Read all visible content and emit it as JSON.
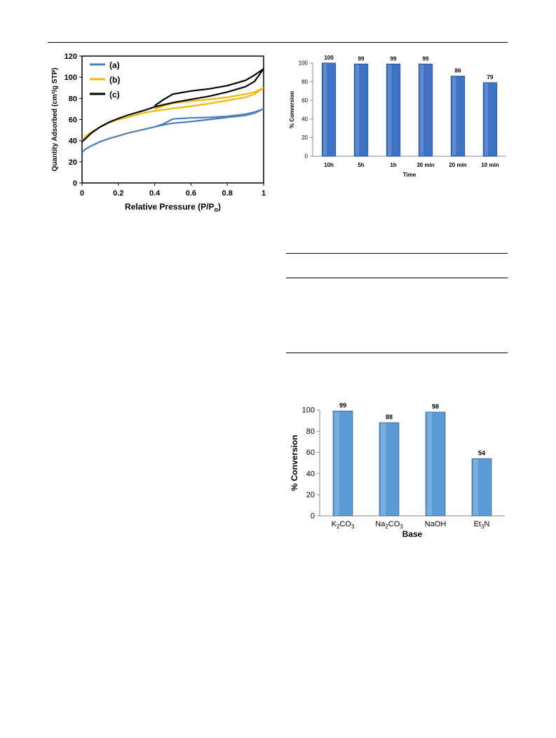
{
  "chart_data": [
    {
      "type": "line",
      "xlabel": "Relative Pressure (P/P",
      "xlabel_sub": "o",
      "xlabel_end": ")",
      "ylabel": "Quantity Adsorbed (cm³/g STP)",
      "xlim": [
        0,
        1
      ],
      "ylim": [
        0,
        120
      ],
      "xticks": [
        0,
        0.2,
        0.4,
        0.6,
        0.8,
        1
      ],
      "xtick_labels": [
        "0",
        "0.2",
        "0.4",
        "0.6",
        "0.8",
        "1"
      ],
      "yticks": [
        0,
        20,
        40,
        60,
        80,
        100,
        120
      ],
      "ytick_labels": [
        "0",
        "20",
        "40",
        "60",
        "80",
        "100",
        "120"
      ],
      "grid": false,
      "legend_position": "top-left",
      "series": [
        {
          "name": "(a)",
          "color": "#4a7ebb",
          "adsorption": [
            [
              0.0,
              29
            ],
            [
              0.02,
              32
            ],
            [
              0.05,
              35
            ],
            [
              0.1,
              39
            ],
            [
              0.15,
              42
            ],
            [
              0.2,
              44.5
            ],
            [
              0.25,
              47
            ],
            [
              0.3,
              49
            ],
            [
              0.35,
              51
            ],
            [
              0.4,
              53
            ],
            [
              0.45,
              55
            ],
            [
              0.5,
              56.5
            ],
            [
              0.6,
              58
            ],
            [
              0.7,
              60
            ],
            [
              0.8,
              62
            ],
            [
              0.9,
              64
            ],
            [
              0.95,
              66
            ],
            [
              1.0,
              70
            ]
          ],
          "desorption": [
            [
              1.0,
              70
            ],
            [
              0.95,
              67
            ],
            [
              0.9,
              65
            ],
            [
              0.8,
              63
            ],
            [
              0.7,
              62
            ],
            [
              0.6,
              61.5
            ],
            [
              0.5,
              60.5
            ],
            [
              0.45,
              56
            ],
            [
              0.4,
              53
            ]
          ]
        },
        {
          "name": "(b)",
          "color": "#f5b400",
          "adsorption": [
            [
              0.0,
              40
            ],
            [
              0.02,
              44
            ],
            [
              0.05,
              48
            ],
            [
              0.1,
              53
            ],
            [
              0.15,
              57
            ],
            [
              0.2,
              60
            ],
            [
              0.25,
              62
            ],
            [
              0.3,
              64.5
            ],
            [
              0.35,
              66.5
            ],
            [
              0.4,
              68
            ],
            [
              0.5,
              70.5
            ],
            [
              0.6,
              72.5
            ],
            [
              0.7,
              75
            ],
            [
              0.8,
              78
            ],
            [
              0.9,
              81
            ],
            [
              0.95,
              84
            ],
            [
              1.0,
              90
            ]
          ],
          "desorption": [
            [
              1.0,
              90
            ],
            [
              0.95,
              86
            ],
            [
              0.9,
              84
            ],
            [
              0.8,
              81
            ],
            [
              0.7,
              79
            ],
            [
              0.6,
              77.5
            ],
            [
              0.5,
              75.5
            ],
            [
              0.45,
              73
            ],
            [
              0.4,
              70
            ]
          ]
        },
        {
          "name": "(c)",
          "color": "#000000",
          "adsorption": [
            [
              0.0,
              39
            ],
            [
              0.02,
              42
            ],
            [
              0.05,
              47
            ],
            [
              0.1,
              53
            ],
            [
              0.15,
              57.5
            ],
            [
              0.2,
              61
            ],
            [
              0.25,
              64
            ],
            [
              0.3,
              66.5
            ],
            [
              0.35,
              69
            ],
            [
              0.4,
              72
            ],
            [
              0.5,
              76
            ],
            [
              0.6,
              79
            ],
            [
              0.7,
              82
            ],
            [
              0.8,
              86
            ],
            [
              0.9,
              91
            ],
            [
              0.95,
              96
            ],
            [
              1.0,
              108
            ]
          ],
          "desorption": [
            [
              1.0,
              108
            ],
            [
              0.95,
              102
            ],
            [
              0.9,
              97
            ],
            [
              0.8,
              92
            ],
            [
              0.7,
              89
            ],
            [
              0.6,
              87
            ],
            [
              0.5,
              84
            ],
            [
              0.45,
              79
            ],
            [
              0.4,
              73
            ]
          ]
        }
      ]
    },
    {
      "type": "bar",
      "xlabel": "Time",
      "ylabel": "% Conversion",
      "categories": [
        "10h",
        "5h",
        "1h",
        "30 min",
        "20 min",
        "10 min"
      ],
      "values": [
        100,
        99,
        99,
        99,
        86,
        79
      ],
      "data_labels": [
        "100",
        "99",
        "99",
        "99",
        "86",
        "79"
      ],
      "ylim": [
        0,
        100
      ],
      "yticks": [
        0,
        20,
        40,
        60,
        80,
        100
      ],
      "ytick_labels": [
        "0",
        "20",
        "40",
        "60",
        "80",
        "100"
      ],
      "grid": false,
      "bar_color": "#3d72c4"
    },
    {
      "type": "bar",
      "xlabel": "Base",
      "ylabel": "% Conversion",
      "categories": [
        {
          "base": "K",
          "sub1": "2",
          "mid": "CO",
          "sub2": "3"
        },
        {
          "base": "Na",
          "sub1": "2",
          "mid": "CO",
          "sub2": "3"
        },
        {
          "base": "NaOH",
          "sub1": "",
          "mid": "",
          "sub2": ""
        },
        {
          "base": "Et",
          "sub1": "3",
          "mid": "N",
          "sub2": ""
        }
      ],
      "values": [
        99,
        88,
        98,
        54
      ],
      "data_labels": [
        "99",
        "88",
        "98",
        "54"
      ],
      "ylim": [
        0,
        100
      ],
      "yticks": [
        0,
        20,
        40,
        60,
        80,
        100
      ],
      "ytick_labels": [
        "0",
        "20",
        "40",
        "60",
        "80",
        "100"
      ],
      "grid": false,
      "bar_color": "#5b9bd5"
    }
  ]
}
